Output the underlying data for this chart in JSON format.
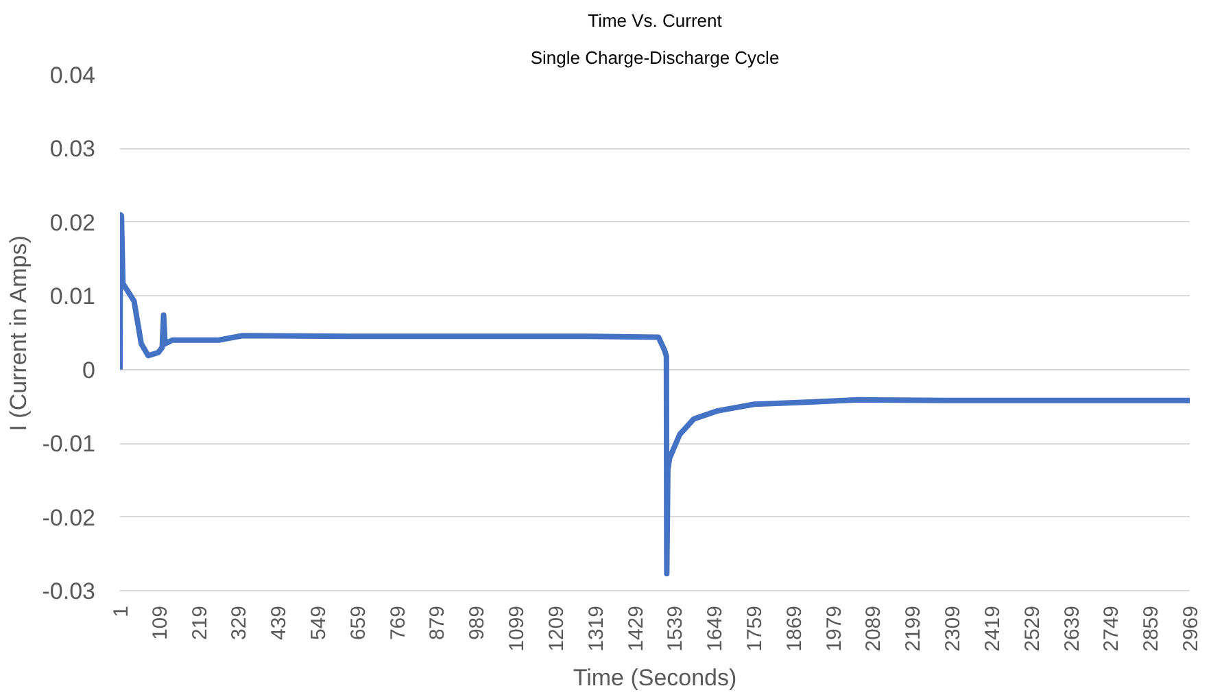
{
  "chart_data": {
    "type": "line",
    "title": "Time Vs. Current",
    "subtitle": "Single Charge-Discharge Cycle",
    "xlabel": "Time (Seconds)",
    "ylabel": "I (Current in Amps)",
    "x": [
      1,
      2,
      5,
      9,
      40,
      60,
      79,
      107,
      118,
      122,
      126,
      146,
      275,
      341,
      700,
      1000,
      1300,
      1495,
      1512,
      1517,
      1518,
      1521,
      1526,
      1554,
      1593,
      1659,
      1761,
      1918,
      2050,
      2300,
      2600,
      2969
    ],
    "series": [
      {
        "color": "#4472c4",
        "values": [
          0,
          0.021,
          0.0209,
          0.0117,
          0.0093,
          0.0035,
          0.0019,
          0.0023,
          0.003,
          0.0074,
          0.0035,
          0.004,
          0.004,
          0.0046,
          0.0045,
          0.0045,
          0.0045,
          0.0044,
          0.0026,
          0.0018,
          -0.0277,
          -0.0135,
          -0.012,
          -0.0088,
          -0.0067,
          -0.0056,
          -0.0047,
          -0.0044,
          -0.0041,
          -0.0042,
          -0.0042,
          -0.0042
        ]
      }
    ],
    "xlim": [
      1,
      2969
    ],
    "ylim": [
      -0.03,
      0.04
    ],
    "xticks": [
      1,
      109,
      219,
      329,
      439,
      549,
      659,
      769,
      879,
      989,
      1099,
      1209,
      1319,
      1429,
      1539,
      1649,
      1759,
      1869,
      1979,
      2089,
      2199,
      2309,
      2419,
      2529,
      2639,
      2749,
      2859,
      2969
    ],
    "yticks": [
      -0.03,
      -0.02,
      -0.01,
      0,
      0.01,
      0.02,
      0.03,
      0.04
    ],
    "grid": "y"
  }
}
